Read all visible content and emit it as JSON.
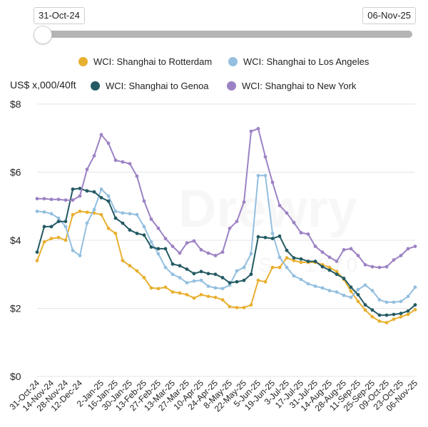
{
  "range": {
    "start": "31-Oct-24",
    "end": "06-Nov-25",
    "slider_position": 0
  },
  "y_unit": "US$ x,000/40ft",
  "watermark": {
    "text": "Drewry",
    "sub": "EST. 1970"
  },
  "legend": [
    {
      "label": "WCI: Shanghai to Rotterdam",
      "color": "#e8b031"
    },
    {
      "label": "WCI: Shanghai to Los Angeles",
      "color": "#94bfdf"
    },
    {
      "label": "WCI: Shanghai to Genoa",
      "color": "#245a63"
    },
    {
      "label": "WCI: Shanghai to New York",
      "color": "#9c82c4"
    }
  ],
  "chart_data": {
    "type": "line",
    "title": "",
    "xlabel": "",
    "ylabel": "US$ x,000/40ft",
    "ylim": [
      0,
      8
    ],
    "yticks": [
      "$0",
      "$2",
      "$4",
      "$6",
      "$8"
    ],
    "ytick_values": [
      0,
      2,
      4,
      6,
      8
    ],
    "grid": true,
    "legend_position": "top",
    "x": [
      "31-Oct-24",
      "07-Nov-24",
      "14-Nov-24",
      "21-Nov-24",
      "28-Nov-24",
      "05-Dec-24",
      "12-Dec-24",
      "19-Dec-24",
      "26-Dec-24",
      "2-Jan-25",
      "9-Jan-25",
      "16-Jan-25",
      "23-Jan-25",
      "30-Jan-25",
      "06-Feb-25",
      "13-Feb-25",
      "20-Feb-25",
      "27-Feb-25",
      "06-Mar-25",
      "13-Mar-25",
      "20-Mar-25",
      "27-Mar-25",
      "03-Apr-25",
      "10-Apr-25",
      "17-Apr-25",
      "24-Apr-25",
      "01-May-25",
      "8-May-25",
      "15-May-25",
      "22-May-25",
      "29-May-25",
      "5-Jun-25",
      "12-Jun-25",
      "19-Jun-25",
      "26-Jun-25",
      "3-Jul-25",
      "10-Jul-25",
      "17-Jul-25",
      "24-Jul-25",
      "31-Jul-25",
      "07-Aug-25",
      "14-Aug-25",
      "21-Aug-25",
      "28-Aug-25",
      "04-Sep-25",
      "11-Sep-25",
      "18-Sep-25",
      "25-Sep-25",
      "02-Oct-25",
      "09-Oct-25",
      "16-Oct-25",
      "23-Oct-25",
      "30-Oct-25",
      "06-Nov-25"
    ],
    "xtick_labels": [
      "31-Oct-24",
      "14-Nov-24",
      "28-Nov-24",
      "12-Dec-24",
      "2-Jan-25",
      "16-Jan-25",
      "30-Jan-25",
      "13-Feb-25",
      "27-Feb-25",
      "13-Mar-25",
      "27-Mar-25",
      "10-Apr-25",
      "24-Apr-25",
      "8-May-25",
      "22-May-25",
      "5-Jun-25",
      "19-Jun-25",
      "3-Jul-25",
      "17-Jul-25",
      "31-Jul-25",
      "14-Aug-25",
      "28-Aug-25",
      "11-Sep-25",
      "25-Sep-25",
      "09-Oct-25",
      "23-Oct-25",
      "06-Nov-25"
    ],
    "series": [
      {
        "name": "WCI: Shanghai to Rotterdam",
        "color": "#e8b031",
        "values": [
          3.4,
          3.95,
          4.05,
          4.08,
          4.0,
          4.75,
          4.85,
          4.82,
          4.8,
          4.75,
          4.35,
          4.2,
          3.4,
          3.25,
          3.1,
          2.9,
          2.6,
          2.58,
          2.62,
          2.48,
          2.45,
          2.4,
          2.3,
          2.4,
          2.35,
          2.32,
          2.25,
          2.05,
          2.02,
          2.02,
          2.1,
          2.82,
          2.78,
          3.2,
          3.2,
          3.48,
          3.4,
          3.35,
          3.35,
          3.35,
          3.28,
          3.2,
          3.08,
          2.85,
          2.5,
          2.2,
          1.95,
          1.75,
          1.62,
          1.58,
          1.68,
          1.75,
          1.82,
          1.96
        ]
      },
      {
        "name": "WCI: Shanghai to Los Angeles",
        "color": "#94bfdf",
        "values": [
          4.85,
          4.83,
          4.78,
          4.65,
          4.4,
          3.7,
          3.55,
          4.5,
          4.9,
          5.5,
          5.3,
          4.85,
          4.8,
          4.78,
          4.75,
          4.4,
          3.95,
          3.6,
          3.2,
          3.0,
          2.9,
          2.75,
          2.8,
          2.82,
          2.65,
          2.6,
          2.58,
          2.68,
          3.1,
          3.2,
          3.6,
          5.9,
          5.9,
          4.2,
          3.5,
          3.2,
          2.95,
          2.85,
          2.72,
          2.65,
          2.6,
          2.52,
          2.48,
          2.38,
          2.32,
          2.55,
          2.68,
          2.52,
          2.25,
          2.18,
          2.18,
          2.2,
          2.35,
          2.62
        ]
      },
      {
        "name": "WCI: Shanghai to Genoa",
        "color": "#245a63",
        "values": [
          3.65,
          4.4,
          4.4,
          4.55,
          4.55,
          5.5,
          5.52,
          5.45,
          5.42,
          5.25,
          5.15,
          4.65,
          4.5,
          4.3,
          4.2,
          4.15,
          3.8,
          3.75,
          3.75,
          3.3,
          3.25,
          3.15,
          3.02,
          3.08,
          3.02,
          3.0,
          2.9,
          2.75,
          2.78,
          2.82,
          3.0,
          4.1,
          4.08,
          4.05,
          4.12,
          3.7,
          3.48,
          3.45,
          3.38,
          3.38,
          3.22,
          3.12,
          3.0,
          2.88,
          2.62,
          2.4,
          2.1,
          1.95,
          1.8,
          1.8,
          1.82,
          1.85,
          1.92,
          2.1
        ]
      },
      {
        "name": "WCI: Shanghai to New York",
        "color": "#9c82c4",
        "values": [
          5.22,
          5.22,
          5.2,
          5.2,
          5.18,
          5.18,
          5.3,
          6.08,
          6.48,
          7.1,
          6.85,
          6.35,
          6.3,
          6.25,
          5.88,
          5.15,
          4.62,
          4.35,
          4.05,
          3.82,
          3.62,
          3.92,
          3.98,
          3.72,
          3.62,
          3.55,
          3.65,
          4.35,
          4.55,
          5.12,
          7.2,
          7.28,
          6.45,
          5.7,
          5.02,
          4.8,
          4.52,
          4.22,
          4.18,
          3.82,
          3.65,
          3.5,
          3.38,
          3.72,
          3.75,
          3.55,
          3.28,
          3.22,
          3.2,
          3.22,
          3.42,
          3.55,
          3.75,
          3.82
        ]
      }
    ]
  }
}
